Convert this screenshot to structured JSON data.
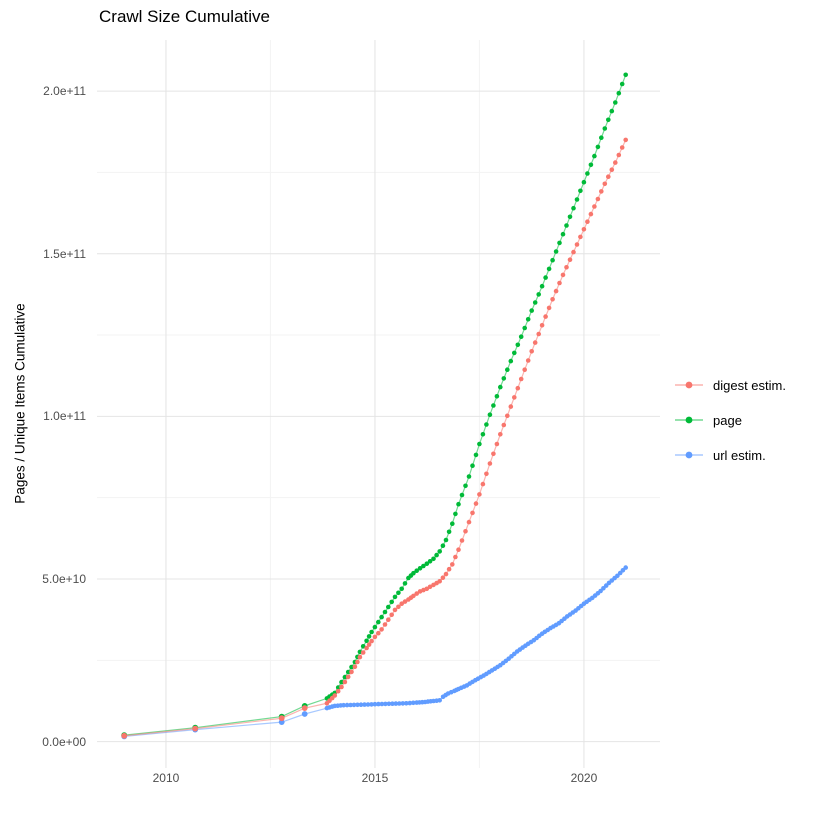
{
  "title": "Crawl Size Cumulative",
  "y_axis": {
    "title": "Pages / Unique Items Cumulative",
    "tick_labels": [
      "0.0e+00",
      "5.0e+10",
      "1.0e+11",
      "1.5e+11",
      "2.0e+11"
    ],
    "tick_values_e9": [
      0,
      50,
      100,
      150,
      200
    ],
    "minor_values_e9": [
      25,
      75,
      125,
      175
    ],
    "range_e9": [
      -8.1,
      215.7
    ]
  },
  "x_axis": {
    "tick_labels": [
      "2010",
      "2015",
      "2020"
    ],
    "tick_values": [
      2010,
      2015,
      2020
    ],
    "minor_values": [
      2012.5,
      2017.5
    ],
    "range": [
      2008.35,
      2021.82
    ]
  },
  "legend": {
    "items": [
      {
        "label": "digest estim.",
        "color": "#F8766D"
      },
      {
        "label": "page",
        "color": "#00BA38"
      },
      {
        "label": "url estim.",
        "color": "#619CFF"
      }
    ]
  },
  "grid": {
    "major_color": "#e4e4e4",
    "minor_color": "#f3f3f3",
    "background": "#ffffff"
  },
  "chart_data": {
    "type": "scatter",
    "note": "cumulative crawl size; x = year, y = value in billions (1e9)",
    "value_scale": 1000000000,
    "dense_from_year": 2013.8,
    "dot_step_years": 0.088,
    "draw_order": [
      1,
      2,
      0
    ],
    "series": [
      {
        "name": "digest estim.",
        "color": "#F8766D",
        "points": [
          [
            2009.0,
            1.8
          ],
          [
            2010.7,
            4.0
          ],
          [
            2012.77,
            7.2
          ],
          [
            2013.32,
            10.3
          ],
          [
            2013.85,
            11.8
          ],
          [
            2014.04,
            14.2
          ],
          [
            2014.2,
            16.8
          ],
          [
            2014.36,
            19.9
          ],
          [
            2014.52,
            23.0
          ],
          [
            2014.64,
            26.0
          ],
          [
            2014.8,
            28.8
          ],
          [
            2014.92,
            30.9
          ],
          [
            2015.0,
            32.2
          ],
          [
            2015.16,
            34.5
          ],
          [
            2015.32,
            37.5
          ],
          [
            2015.48,
            40.5
          ],
          [
            2015.64,
            42.4
          ],
          [
            2015.8,
            43.7
          ],
          [
            2015.92,
            44.8
          ],
          [
            2016.08,
            46.2
          ],
          [
            2016.24,
            47.0
          ],
          [
            2016.4,
            48.2
          ],
          [
            2016.55,
            49.3
          ],
          [
            2016.7,
            51.5
          ],
          [
            2016.85,
            54.5
          ],
          [
            2017.0,
            59.0
          ],
          [
            2017.25,
            67.5
          ],
          [
            2017.5,
            76.0
          ],
          [
            2017.75,
            85.5
          ],
          [
            2018.0,
            94.5
          ],
          [
            2018.25,
            103.0
          ],
          [
            2018.5,
            111.5
          ],
          [
            2018.75,
            120.0
          ],
          [
            2019.0,
            128.0
          ],
          [
            2019.25,
            136.0
          ],
          [
            2019.5,
            143.5
          ],
          [
            2019.75,
            150.5
          ],
          [
            2020.0,
            157.5
          ],
          [
            2020.25,
            164.5
          ],
          [
            2020.5,
            171.5
          ],
          [
            2020.75,
            178.0
          ],
          [
            2021.0,
            185.0
          ]
        ]
      },
      {
        "name": "page",
        "color": "#00BA38",
        "points": [
          [
            2009.0,
            2.0
          ],
          [
            2010.7,
            4.3
          ],
          [
            2012.77,
            7.7
          ],
          [
            2013.32,
            11.0
          ],
          [
            2013.85,
            13.3
          ],
          [
            2014.04,
            15.0
          ],
          [
            2014.2,
            18.3
          ],
          [
            2014.36,
            21.4
          ],
          [
            2014.52,
            24.5
          ],
          [
            2014.64,
            27.6
          ],
          [
            2014.8,
            31.0
          ],
          [
            2014.92,
            33.7
          ],
          [
            2015.0,
            35.2
          ],
          [
            2015.16,
            38.3
          ],
          [
            2015.32,
            41.4
          ],
          [
            2015.48,
            44.5
          ],
          [
            2015.64,
            47.0
          ],
          [
            2015.8,
            50.3
          ],
          [
            2015.92,
            51.8
          ],
          [
            2016.08,
            53.3
          ],
          [
            2016.24,
            54.7
          ],
          [
            2016.4,
            56.2
          ],
          [
            2016.55,
            58.5
          ],
          [
            2016.7,
            62.0
          ],
          [
            2016.85,
            67.0
          ],
          [
            2017.0,
            73.0
          ],
          [
            2017.25,
            81.5
          ],
          [
            2017.5,
            91.5
          ],
          [
            2017.75,
            100.5
          ],
          [
            2018.0,
            109.0
          ],
          [
            2018.25,
            117.0
          ],
          [
            2018.5,
            124.5
          ],
          [
            2018.75,
            132.5
          ],
          [
            2019.0,
            140.0
          ],
          [
            2019.25,
            148.0
          ],
          [
            2019.5,
            156.0
          ],
          [
            2019.75,
            164.0
          ],
          [
            2020.0,
            172.0
          ],
          [
            2020.25,
            180.0
          ],
          [
            2020.5,
            188.5
          ],
          [
            2020.75,
            196.5
          ],
          [
            2021.0,
            205.0
          ]
        ]
      },
      {
        "name": "url estim.",
        "color": "#619CFF",
        "points": [
          [
            2009.0,
            1.6
          ],
          [
            2010.7,
            3.7
          ],
          [
            2012.77,
            6.0
          ],
          [
            2013.32,
            8.5
          ],
          [
            2013.85,
            10.3
          ],
          [
            2014.04,
            11.0
          ],
          [
            2014.25,
            11.2
          ],
          [
            2014.5,
            11.3
          ],
          [
            2014.75,
            11.4
          ],
          [
            2015.0,
            11.5
          ],
          [
            2015.25,
            11.6
          ],
          [
            2015.5,
            11.7
          ],
          [
            2015.75,
            11.8
          ],
          [
            2016.0,
            12.0
          ],
          [
            2016.2,
            12.2
          ],
          [
            2016.4,
            12.5
          ],
          [
            2016.55,
            12.7
          ],
          [
            2016.63,
            13.8
          ],
          [
            2016.75,
            14.8
          ],
          [
            2016.9,
            15.6
          ],
          [
            2017.0,
            16.2
          ],
          [
            2017.2,
            17.3
          ],
          [
            2017.4,
            18.9
          ],
          [
            2017.6,
            20.3
          ],
          [
            2017.8,
            21.9
          ],
          [
            2018.0,
            23.5
          ],
          [
            2018.2,
            25.5
          ],
          [
            2018.4,
            27.7
          ],
          [
            2018.6,
            29.5
          ],
          [
            2018.8,
            31.2
          ],
          [
            2019.0,
            33.2
          ],
          [
            2019.2,
            34.9
          ],
          [
            2019.4,
            36.4
          ],
          [
            2019.6,
            38.5
          ],
          [
            2019.8,
            40.3
          ],
          [
            2020.0,
            42.4
          ],
          [
            2020.2,
            44.2
          ],
          [
            2020.4,
            46.3
          ],
          [
            2020.6,
            48.8
          ],
          [
            2020.8,
            51.0
          ],
          [
            2021.0,
            53.5
          ]
        ]
      }
    ]
  }
}
